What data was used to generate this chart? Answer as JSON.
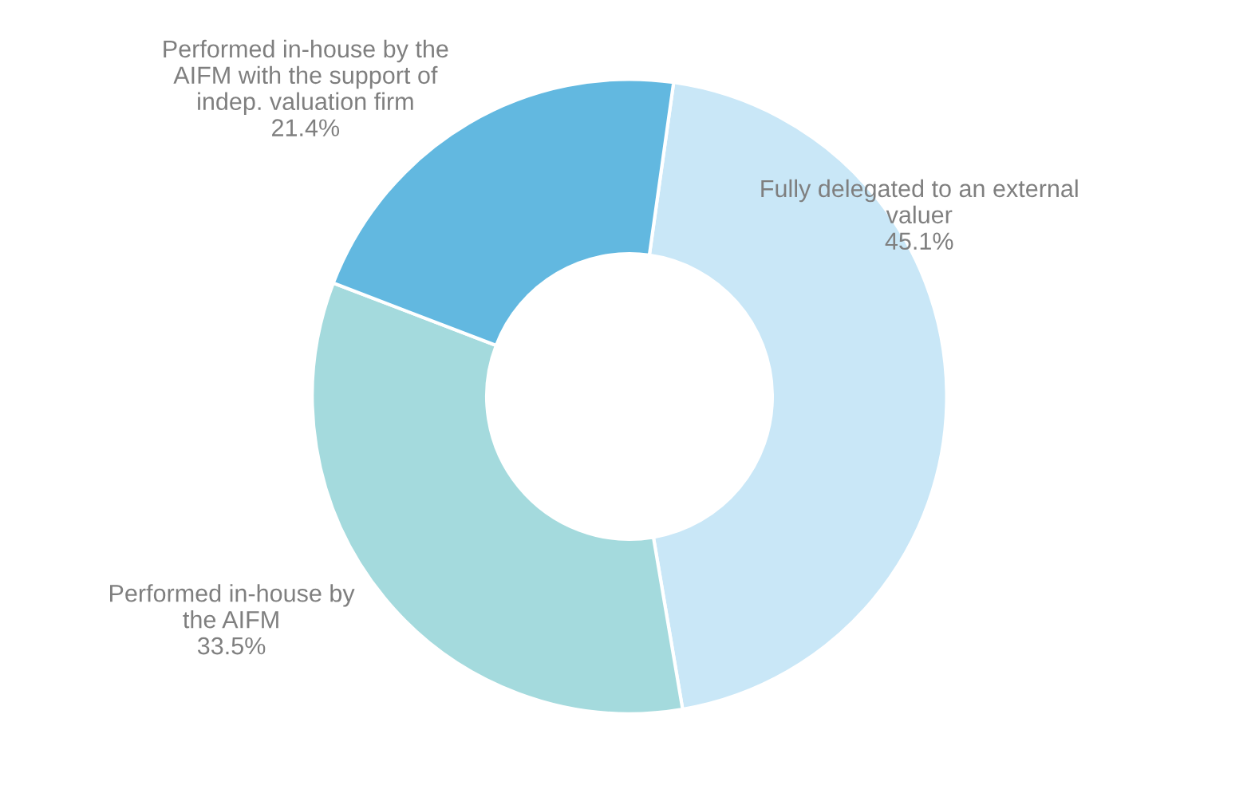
{
  "chart_data": {
    "type": "donut",
    "categories": [
      "Fully delegated to an external\nvaluer",
      "Performed in-house by\nthe AIFM",
      "Performed in-house by the\nAIFM with the support of\nindep. valuation firm"
    ],
    "values": [
      45.1,
      33.5,
      21.4
    ],
    "value_labels": [
      "45.1%",
      "33.5%",
      "21.4%"
    ],
    "colors": [
      "#c9e7f7",
      "#a4dadd",
      "#62b8e0"
    ],
    "legend": false
  }
}
